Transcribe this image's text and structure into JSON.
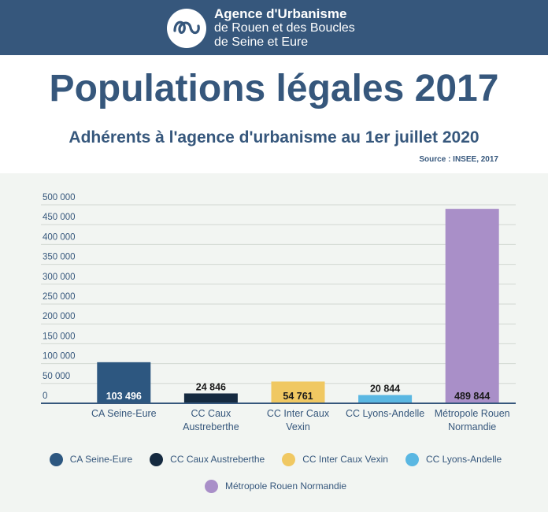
{
  "header": {
    "org_line1": "Agence d'Urbanisme",
    "org_line2": "de Rouen et des Boucles",
    "org_line3": "de Seine et Eure"
  },
  "page": {
    "title": "Populations légales 2017",
    "subtitle": "Adhérents à l'agence d'urbanisme au 1er juillet 2020",
    "source": "Source : INSEE, 2017"
  },
  "colors": {
    "header_bg": "#36577c",
    "text": "#36577c",
    "bar_palette": [
      "#2d5780",
      "#152a40",
      "#f0c862",
      "#5ab7e2",
      "#a98fc8"
    ]
  },
  "chart_data": {
    "type": "bar",
    "title": "Populations légales 2017",
    "categories": [
      "CA Seine-Eure",
      "CC Caux Austreberthe",
      "CC Inter Caux Vexin",
      "CC Lyons-Andelle",
      "Métropole Rouen Normandie"
    ],
    "category_labels": [
      [
        "CA Seine-Eure"
      ],
      [
        "CC Caux",
        "Austreberthe"
      ],
      [
        "CC Inter Caux",
        "Vexin"
      ],
      [
        "CC Lyons-Andelle"
      ],
      [
        "Métropole Rouen",
        "Normandie"
      ]
    ],
    "values": [
      103496,
      24846,
      54761,
      20844,
      489844
    ],
    "value_labels": [
      "103 496",
      "24 846",
      "54 761",
      "20 844",
      "489 844"
    ],
    "colors": [
      "#2d5780",
      "#152a40",
      "#f0c862",
      "#5ab7e2",
      "#a98fc8"
    ],
    "ylim": [
      0,
      500000
    ],
    "yticks": [
      0,
      50000,
      100000,
      150000,
      200000,
      250000,
      300000,
      350000,
      400000,
      450000,
      500000
    ],
    "ytick_labels": [
      "0",
      "50 000",
      "100 000",
      "150 000",
      "200 000",
      "250 000",
      "300 000",
      "350 000",
      "400 000",
      "450 000",
      "500 000"
    ],
    "grid": true,
    "legend": [
      "CA Seine-Eure",
      "CC Caux Austreberthe",
      "CC Inter Caux Vexin",
      "CC Lyons-Andelle",
      "Métropole Rouen Normandie"
    ],
    "legend_position": "bottom"
  }
}
